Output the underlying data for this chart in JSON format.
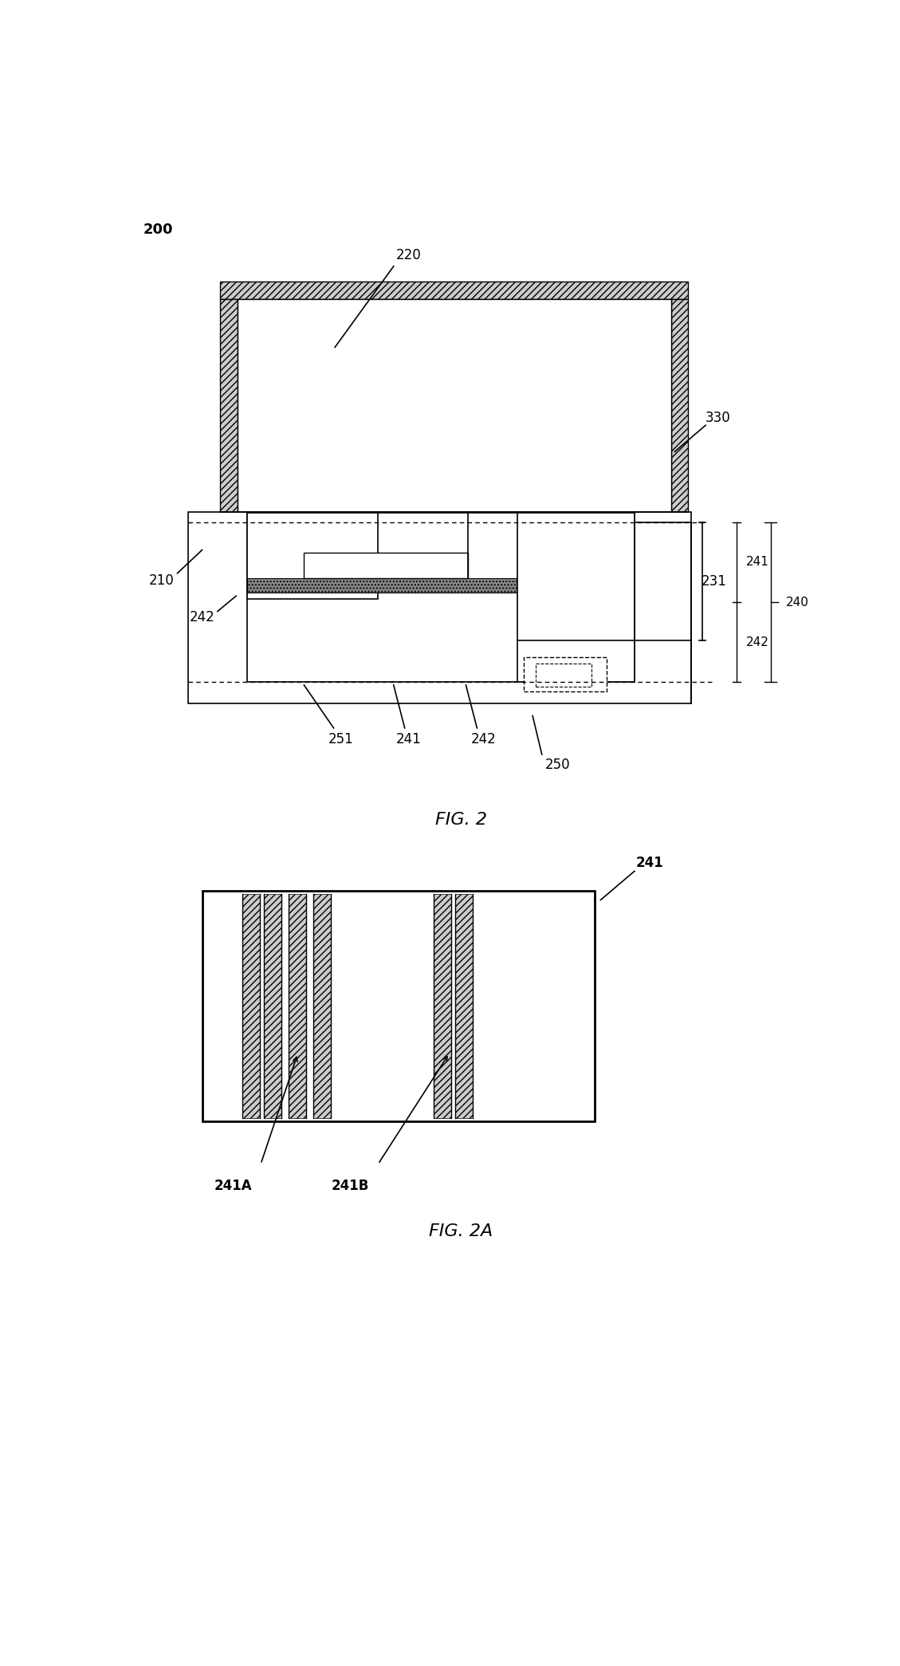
{
  "fig_width": 11.29,
  "fig_height": 20.89,
  "label_200": "200",
  "label_220": "220",
  "label_330": "330",
  "label_210": "210",
  "label_231": "231",
  "label_242_left": "242",
  "label_251": "251",
  "label_241_mid": "241",
  "label_242_mid": "242",
  "label_250": "250",
  "label_241_right": "241",
  "label_240": "240",
  "label_242_right": "242",
  "label_fig2": "FIG. 2",
  "label_241_2a": "241",
  "label_241A": "241A",
  "label_241B": "241B",
  "label_fig2a": "FIG. 2A"
}
